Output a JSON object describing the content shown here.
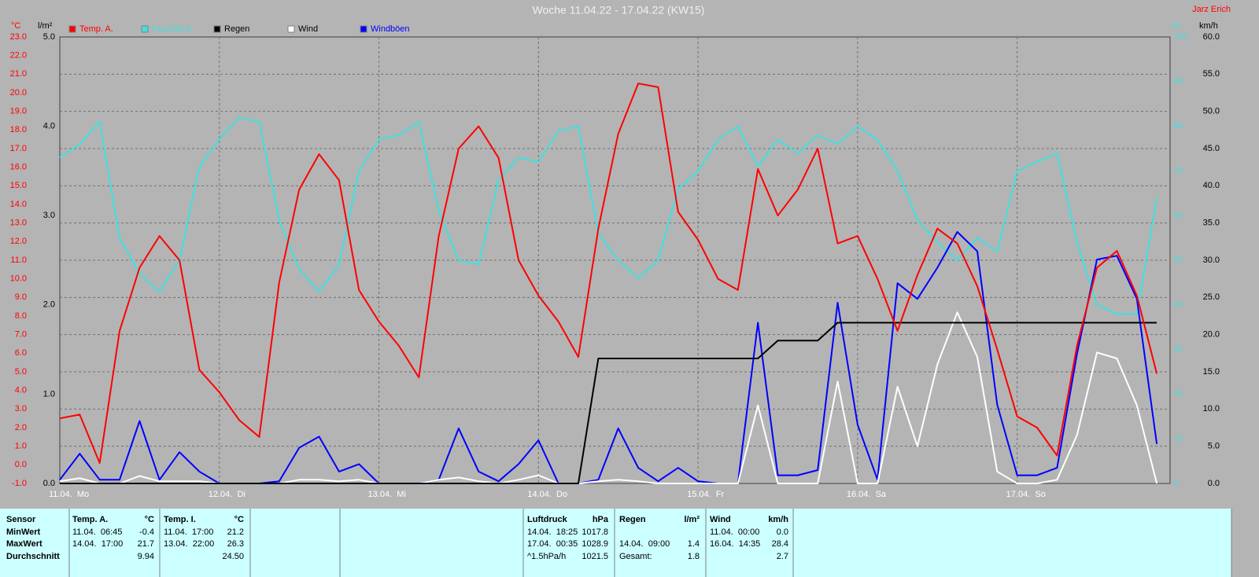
{
  "chart_data": {
    "type": "line",
    "title": "Woche 11.04.22 - 17.04.22 (KW15)",
    "author": "Jarz Erich",
    "ylabel": "°C",
    "y2label": "l/m²",
    "y3label": "%",
    "y4label": "km/h",
    "grid": true,
    "x": [
      0,
      3,
      6,
      9,
      12,
      15,
      18,
      21,
      24,
      27,
      30,
      33,
      36,
      39,
      42,
      45,
      48,
      51,
      54,
      57,
      60,
      63,
      66,
      69,
      72,
      75,
      78,
      81,
      84,
      87,
      90,
      93,
      96,
      99,
      102,
      105,
      108,
      111,
      114,
      117,
      120,
      123,
      126,
      129,
      132,
      135,
      138,
      141,
      144,
      147,
      150,
      153,
      156,
      159,
      162,
      165
    ],
    "xlim": [
      0,
      167
    ],
    "xticks": [
      {
        "value": 0,
        "label": "11.04.  Mo"
      },
      {
        "value": 24,
        "label": "12.04.  Di"
      },
      {
        "value": 48,
        "label": "13.04.  Mi"
      },
      {
        "value": 72,
        "label": "14.04.  Do"
      },
      {
        "value": 96,
        "label": "15.04.  Fr"
      },
      {
        "value": 120,
        "label": "16.04.  Sa"
      },
      {
        "value": 144,
        "label": "17.04.  So"
      }
    ],
    "ylim": [
      -1,
      23
    ],
    "yticks": [
      {
        "value": -1,
        "label": "-1.0"
      },
      {
        "value": 0,
        "label": "0.0"
      },
      {
        "value": 1,
        "label": "1.0"
      },
      {
        "value": 2,
        "label": "2.0"
      },
      {
        "value": 3,
        "label": "3.0"
      },
      {
        "value": 4,
        "label": "4.0"
      },
      {
        "value": 5,
        "label": "5.0"
      },
      {
        "value": 6,
        "label": "6.0"
      },
      {
        "value": 7,
        "label": "7.0"
      },
      {
        "value": 8,
        "label": "8.0"
      },
      {
        "value": 9,
        "label": "9.0"
      },
      {
        "value": 10,
        "label": "10.0"
      },
      {
        "value": 11,
        "label": "11.0"
      },
      {
        "value": 12,
        "label": "12.0"
      },
      {
        "value": 13,
        "label": "13.0"
      },
      {
        "value": 14,
        "label": "14.0"
      },
      {
        "value": 15,
        "label": "15.0"
      },
      {
        "value": 16,
        "label": "16.0"
      },
      {
        "value": 17,
        "label": "17.0"
      },
      {
        "value": 18,
        "label": "18.0"
      },
      {
        "value": 19,
        "label": "19.0"
      },
      {
        "value": 20,
        "label": "20.0"
      },
      {
        "value": 21,
        "label": "21.0"
      },
      {
        "value": 22,
        "label": "22.0"
      },
      {
        "value": 23,
        "label": "23.0"
      }
    ],
    "y2lim": [
      0,
      5
    ],
    "y2ticks": [
      {
        "value": 0,
        "label": "0.0"
      },
      {
        "value": 1,
        "label": "1.0"
      },
      {
        "value": 2,
        "label": "2.0"
      },
      {
        "value": 3,
        "label": "3.0"
      },
      {
        "value": 4,
        "label": "4.0"
      },
      {
        "value": 5,
        "label": "5.0"
      }
    ],
    "y3lim": [
      0,
      100
    ],
    "y3ticks": [
      0,
      10,
      20,
      30,
      40,
      50,
      60,
      70,
      80,
      90,
      100
    ],
    "y4lim": [
      0,
      60
    ],
    "y4ticks": [
      {
        "value": 0,
        "label": "0.0"
      },
      {
        "value": 5,
        "label": "5.0"
      },
      {
        "value": 10,
        "label": "10.0"
      },
      {
        "value": 15,
        "label": "15.0"
      },
      {
        "value": 20,
        "label": "20.0"
      },
      {
        "value": 25,
        "label": "25.0"
      },
      {
        "value": 30,
        "label": "30.0"
      },
      {
        "value": 35,
        "label": "35.0"
      },
      {
        "value": 40,
        "label": "40.0"
      },
      {
        "value": 45,
        "label": "45.0"
      },
      {
        "value": 50,
        "label": "50.0"
      },
      {
        "value": 55,
        "label": "55.0"
      },
      {
        "value": 60,
        "label": "60.0"
      }
    ],
    "series": [
      {
        "name": "Temp. A.",
        "color": "#ff0000",
        "axis": "y",
        "values": [
          2.5,
          2.7,
          0.1,
          7.2,
          10.6,
          12.3,
          11.0,
          5.1,
          3.9,
          2.4,
          1.5,
          9.8,
          14.8,
          16.7,
          15.3,
          9.4,
          7.7,
          6.4,
          4.7,
          12.3,
          17.0,
          18.2,
          16.5,
          11.0,
          9.1,
          7.7,
          5.8,
          12.7,
          17.8,
          20.5,
          20.3,
          13.6,
          12.1,
          10.0,
          9.4,
          15.9,
          13.4,
          14.8,
          17.0,
          11.9,
          12.3,
          10.0,
          7.2,
          10.2,
          12.7,
          11.9,
          9.6,
          6.2,
          2.6,
          2.0,
          0.5,
          6.4,
          10.6,
          11.5,
          9.1,
          4.9
        ]
      },
      {
        "name": "Feuchte A.",
        "color": "#40e0e0",
        "axis": "y3",
        "values": [
          73,
          76,
          81,
          55,
          47,
          43,
          50,
          71,
          77,
          82,
          81,
          59,
          48,
          43,
          49,
          70,
          77,
          78,
          81,
          61,
          50,
          49,
          68,
          73,
          72,
          79,
          80,
          56,
          50,
          46,
          50,
          66,
          70,
          77,
          80,
          71,
          77,
          74,
          78,
          76,
          80,
          77,
          70,
          59,
          54,
          50,
          55,
          52,
          70,
          72,
          74,
          54,
          40,
          38,
          38,
          64
        ]
      },
      {
        "name": "Regen",
        "color": "#000000",
        "axis": "y2",
        "values": [
          0,
          0,
          0,
          0,
          0,
          0,
          0,
          0,
          0,
          0,
          0,
          0,
          0,
          0,
          0,
          0,
          0,
          0,
          0,
          0,
          0,
          0,
          0,
          0,
          0,
          0,
          0,
          1.4,
          1.4,
          1.4,
          1.4,
          1.4,
          1.4,
          1.4,
          1.4,
          1.4,
          1.6,
          1.6,
          1.6,
          1.8,
          1.8,
          1.8,
          1.8,
          1.8,
          1.8,
          1.8,
          1.8,
          1.8,
          1.8,
          1.8,
          1.8,
          1.8,
          1.8,
          1.8,
          1.8,
          1.8
        ]
      },
      {
        "name": "Wind",
        "color": "#ffffff",
        "axis": "y4",
        "values": [
          0.3,
          0.7,
          0,
          0,
          1.0,
          0.3,
          0.3,
          0.3,
          0,
          0,
          0,
          0,
          0.5,
          0.5,
          0.3,
          0.5,
          0,
          0,
          0,
          0.5,
          0.8,
          0.3,
          0,
          0.5,
          1.1,
          0,
          0,
          0.3,
          0.5,
          0.3,
          0,
          0,
          0,
          0,
          0,
          10.5,
          0,
          0,
          0,
          13.7,
          0,
          0,
          13.0,
          5.0,
          16.0,
          23.0,
          17.0,
          1.6,
          0,
          0,
          0.5,
          6.5,
          17.6,
          16.8,
          10.5,
          0
        ]
      },
      {
        "name": "Windböen",
        "color": "#0000ff",
        "axis": "y4",
        "values": [
          0.5,
          4.0,
          0.5,
          0.5,
          8.4,
          0.5,
          4.2,
          1.6,
          0,
          0,
          0,
          0.3,
          4.8,
          6.3,
          1.6,
          2.6,
          0,
          0,
          0,
          0.5,
          7.4,
          1.6,
          0.3,
          2.6,
          5.8,
          0,
          0,
          0.5,
          7.4,
          2.1,
          0.3,
          2.1,
          0.3,
          0,
          0,
          21.6,
          1.1,
          1.1,
          1.8,
          24.3,
          7.9,
          0.5,
          26.9,
          24.8,
          29.0,
          33.8,
          31.2,
          10.6,
          1.1,
          1.1,
          2.1,
          17.4,
          30.1,
          30.6,
          24.8,
          5.3
        ]
      }
    ]
  },
  "stats": {
    "label_header": "Sensor",
    "row_labels": [
      "MinWert",
      "MaxWert",
      "Durchschnitt"
    ],
    "groups": [
      {
        "name": "Temp. A.",
        "unit": "°C",
        "rows": [
          [
            "11.04.  06:45",
            "-0.4"
          ],
          [
            "14.04.  17:00",
            "21.7"
          ],
          [
            null,
            "9.94"
          ]
        ]
      },
      {
        "name": "Temp. I.",
        "unit": "°C",
        "rows": [
          [
            "11.04.  17:00",
            "21.2"
          ],
          [
            "13.04.  22:00",
            "26.3"
          ],
          [
            null,
            "24.50"
          ]
        ]
      },
      {
        "name": "Luftdruck",
        "unit": "hPa",
        "rows": [
          [
            "14.04.  18:25",
            "1017.8"
          ],
          [
            "17.04.  00:35",
            "1028.9"
          ],
          [
            "^1.5hPa/h",
            "1021.5"
          ]
        ]
      },
      {
        "name": "Regen",
        "unit": "l/m²",
        "rows": [
          [
            null,
            null
          ],
          [
            "14.04.  09:00",
            "1.4"
          ],
          [
            "Gesamt:",
            "1.8"
          ]
        ]
      },
      {
        "name": "Wind",
        "unit": "km/h",
        "rows": [
          [
            "11.04.  00:00",
            "0.0"
          ],
          [
            "16.04.  14:35",
            "28.4"
          ],
          [
            null,
            "2.7"
          ]
        ]
      }
    ]
  }
}
